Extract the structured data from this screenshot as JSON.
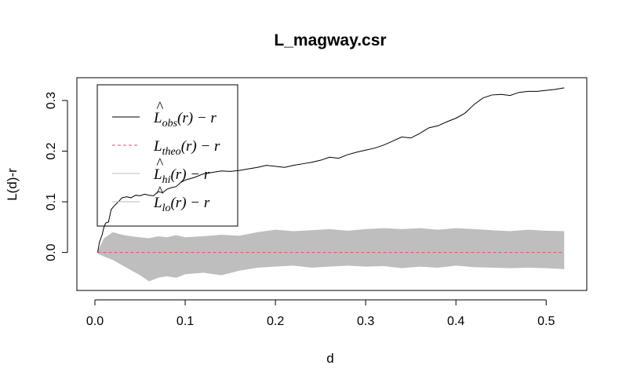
{
  "chart_data": {
    "type": "line",
    "title": "L_magway.csr",
    "xlabel": "d",
    "ylabel": "L(d)-r",
    "xlim": [
      -0.02,
      0.545
    ],
    "ylim": [
      -0.075,
      0.345
    ],
    "xticks": [
      "0.0",
      "0.1",
      "0.2",
      "0.3",
      "0.4",
      "0.5"
    ],
    "xtick_values": [
      0,
      0.1,
      0.2,
      0.3,
      0.4,
      0.5
    ],
    "yticks": [
      "0.0",
      "0.1",
      "0.2",
      "0.3"
    ],
    "ytick_values": [
      0,
      0.1,
      0.2,
      0.3
    ],
    "grid": false,
    "legend": {
      "position": "top-left",
      "entries": [
        {
          "main": "L",
          "hat": "^",
          "sub": "obs",
          "tail": "(r) − r",
          "color": "#000000",
          "dash": "solid"
        },
        {
          "main": "L",
          "hat": "",
          "sub": "theo",
          "tail": "(r) − r",
          "color": "#DF536B",
          "dash": "dashed"
        },
        {
          "main": "L",
          "hat": "^",
          "sub": "hi",
          "tail": "(r) − r",
          "color": "#BEBEBE",
          "dash": "solid"
        },
        {
          "main": "L",
          "hat": "^",
          "sub": "lo",
          "tail": "(r) − r",
          "color": "#BEBEBE",
          "dash": "solid"
        }
      ]
    },
    "series": [
      {
        "key": "obs",
        "color": "#000000",
        "x": [
          0.003,
          0.005,
          0.008,
          0.01,
          0.012,
          0.015,
          0.018,
          0.022,
          0.026,
          0.03,
          0.035,
          0.04,
          0.045,
          0.05,
          0.055,
          0.06,
          0.065,
          0.07,
          0.075,
          0.08,
          0.085,
          0.09,
          0.095,
          0.1,
          0.11,
          0.12,
          0.13,
          0.14,
          0.15,
          0.16,
          0.17,
          0.18,
          0.19,
          0.2,
          0.21,
          0.22,
          0.23,
          0.24,
          0.25,
          0.26,
          0.27,
          0.28,
          0.29,
          0.3,
          0.31,
          0.32,
          0.33,
          0.34,
          0.35,
          0.36,
          0.37,
          0.38,
          0.39,
          0.4,
          0.41,
          0.42,
          0.43,
          0.44,
          0.45,
          0.46,
          0.47,
          0.48,
          0.49,
          0.5,
          0.51,
          0.52
        ],
        "y": [
          0.0,
          0.02,
          0.035,
          0.05,
          0.058,
          0.06,
          0.085,
          0.093,
          0.1,
          0.108,
          0.11,
          0.108,
          0.113,
          0.112,
          0.115,
          0.113,
          0.112,
          0.12,
          0.118,
          0.125,
          0.128,
          0.13,
          0.138,
          0.143,
          0.148,
          0.155,
          0.158,
          0.161,
          0.16,
          0.162,
          0.165,
          0.168,
          0.172,
          0.17,
          0.168,
          0.172,
          0.175,
          0.178,
          0.182,
          0.188,
          0.186,
          0.193,
          0.198,
          0.202,
          0.206,
          0.212,
          0.22,
          0.228,
          0.226,
          0.235,
          0.246,
          0.25,
          0.258,
          0.265,
          0.275,
          0.292,
          0.305,
          0.311,
          0.312,
          0.31,
          0.316,
          0.318,
          0.318,
          0.32,
          0.322,
          0.325
        ]
      },
      {
        "key": "theo",
        "color": "#DF536B",
        "x": [
          0.003,
          0.52
        ],
        "y": [
          0.0,
          0.0
        ]
      }
    ],
    "envelope": {
      "color": "#BEBEBE",
      "x": [
        0.003,
        0.01,
        0.02,
        0.03,
        0.04,
        0.05,
        0.06,
        0.07,
        0.08,
        0.09,
        0.1,
        0.12,
        0.14,
        0.16,
        0.18,
        0.2,
        0.22,
        0.24,
        0.26,
        0.28,
        0.3,
        0.32,
        0.34,
        0.36,
        0.38,
        0.4,
        0.42,
        0.44,
        0.46,
        0.48,
        0.5,
        0.52
      ],
      "hi": [
        0.002,
        0.028,
        0.04,
        0.035,
        0.032,
        0.03,
        0.028,
        0.032,
        0.03,
        0.034,
        0.03,
        0.032,
        0.035,
        0.033,
        0.04,
        0.045,
        0.042,
        0.044,
        0.046,
        0.043,
        0.046,
        0.048,
        0.046,
        0.048,
        0.045,
        0.048,
        0.046,
        0.044,
        0.042,
        0.045,
        0.043,
        0.042
      ],
      "lo": [
        -0.002,
        -0.008,
        -0.015,
        -0.025,
        -0.035,
        -0.045,
        -0.057,
        -0.05,
        -0.047,
        -0.05,
        -0.043,
        -0.04,
        -0.045,
        -0.036,
        -0.03,
        -0.028,
        -0.026,
        -0.03,
        -0.028,
        -0.026,
        -0.028,
        -0.027,
        -0.031,
        -0.028,
        -0.03,
        -0.026,
        -0.029,
        -0.03,
        -0.031,
        -0.03,
        -0.031,
        -0.033
      ]
    }
  }
}
